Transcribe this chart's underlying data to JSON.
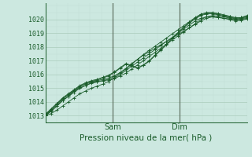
{
  "xlabel": "Pression niveau de la mer( hPa )",
  "bg_color": "#cce8e0",
  "grid_major_color": "#aaccbb",
  "grid_minor_color": "#c2ddd5",
  "line_color": "#1a5c2a",
  "vline_color": "#556655",
  "axis_label_color": "#1a5c2a",
  "tick_label_color": "#1a5c2a",
  "ylim": [
    1012.5,
    1021.2
  ],
  "xlim": [
    0,
    72
  ],
  "yticks": [
    1013,
    1014,
    1015,
    1016,
    1017,
    1018,
    1019,
    1020
  ],
  "xtick_positions": [
    24,
    48
  ],
  "xtick_labels": [
    "Sam",
    "Dim"
  ],
  "series": [
    [
      1013.0,
      1013.3,
      1013.7,
      1014.1,
      1014.4,
      1014.8,
      1015.0,
      1015.2,
      1015.4,
      1015.5,
      1015.55,
      1015.6,
      1015.7,
      1015.9,
      1016.1,
      1016.4,
      1016.7,
      1017.0,
      1017.3,
      1017.6,
      1017.9,
      1018.2,
      1018.5,
      1018.8,
      1019.1,
      1019.4,
      1019.7,
      1020.0,
      1020.2,
      1020.3,
      1020.25,
      1020.2,
      1020.1,
      1020.0,
      1020.0,
      1020.1
    ],
    [
      1013.05,
      1013.4,
      1013.8,
      1014.2,
      1014.5,
      1014.8,
      1015.1,
      1015.3,
      1015.45,
      1015.55,
      1015.65,
      1015.75,
      1015.9,
      1016.15,
      1016.45,
      1016.8,
      1017.1,
      1017.4,
      1017.65,
      1017.9,
      1018.15,
      1018.4,
      1018.65,
      1018.9,
      1019.15,
      1019.4,
      1019.65,
      1019.9,
      1020.1,
      1020.2,
      1020.15,
      1020.1,
      1020.05,
      1020.0,
      1020.05,
      1020.15
    ],
    [
      1013.0,
      1013.35,
      1013.7,
      1014.1,
      1014.4,
      1014.7,
      1015.0,
      1015.2,
      1015.35,
      1015.45,
      1015.55,
      1015.65,
      1015.85,
      1016.1,
      1016.4,
      1016.75,
      1017.1,
      1017.45,
      1017.75,
      1018.05,
      1018.35,
      1018.65,
      1018.95,
      1019.25,
      1019.55,
      1019.85,
      1020.15,
      1020.4,
      1020.52,
      1020.52,
      1020.45,
      1020.35,
      1020.25,
      1020.15,
      1020.15,
      1020.3
    ],
    [
      1013.05,
      1013.45,
      1013.85,
      1014.25,
      1014.55,
      1014.85,
      1015.15,
      1015.35,
      1015.5,
      1015.6,
      1015.75,
      1015.9,
      1016.15,
      1016.45,
      1016.75,
      1016.6,
      1016.45,
      1016.65,
      1016.95,
      1017.35,
      1017.75,
      1018.15,
      1018.6,
      1019.0,
      1019.4,
      1019.75,
      1020.05,
      1020.3,
      1020.42,
      1020.42,
      1020.35,
      1020.25,
      1020.15,
      1020.05,
      1020.1,
      1020.2
    ],
    [
      1013.1,
      1013.5,
      1013.9,
      1014.3,
      1014.6,
      1014.9,
      1015.2,
      1015.4,
      1015.55,
      1015.65,
      1015.8,
      1015.95,
      1016.2,
      1016.5,
      1016.8,
      1016.65,
      1016.5,
      1016.7,
      1017.0,
      1017.4,
      1017.8,
      1018.2,
      1018.65,
      1019.05,
      1019.45,
      1019.8,
      1020.1,
      1020.35,
      1020.47,
      1020.47,
      1020.4,
      1020.3,
      1020.2,
      1020.1,
      1020.15,
      1020.25
    ],
    [
      1013.0,
      1013.15,
      1013.4,
      1013.7,
      1014.0,
      1014.3,
      1014.6,
      1014.8,
      1015.0,
      1015.15,
      1015.3,
      1015.5,
      1015.75,
      1016.0,
      1016.3,
      1016.6,
      1016.9,
      1017.2,
      1017.5,
      1017.8,
      1018.1,
      1018.4,
      1018.7,
      1019.0,
      1019.3,
      1019.6,
      1019.9,
      1020.1,
      1020.2,
      1020.2,
      1020.15,
      1020.1,
      1020.0,
      1019.9,
      1019.95,
      1020.05
    ]
  ]
}
